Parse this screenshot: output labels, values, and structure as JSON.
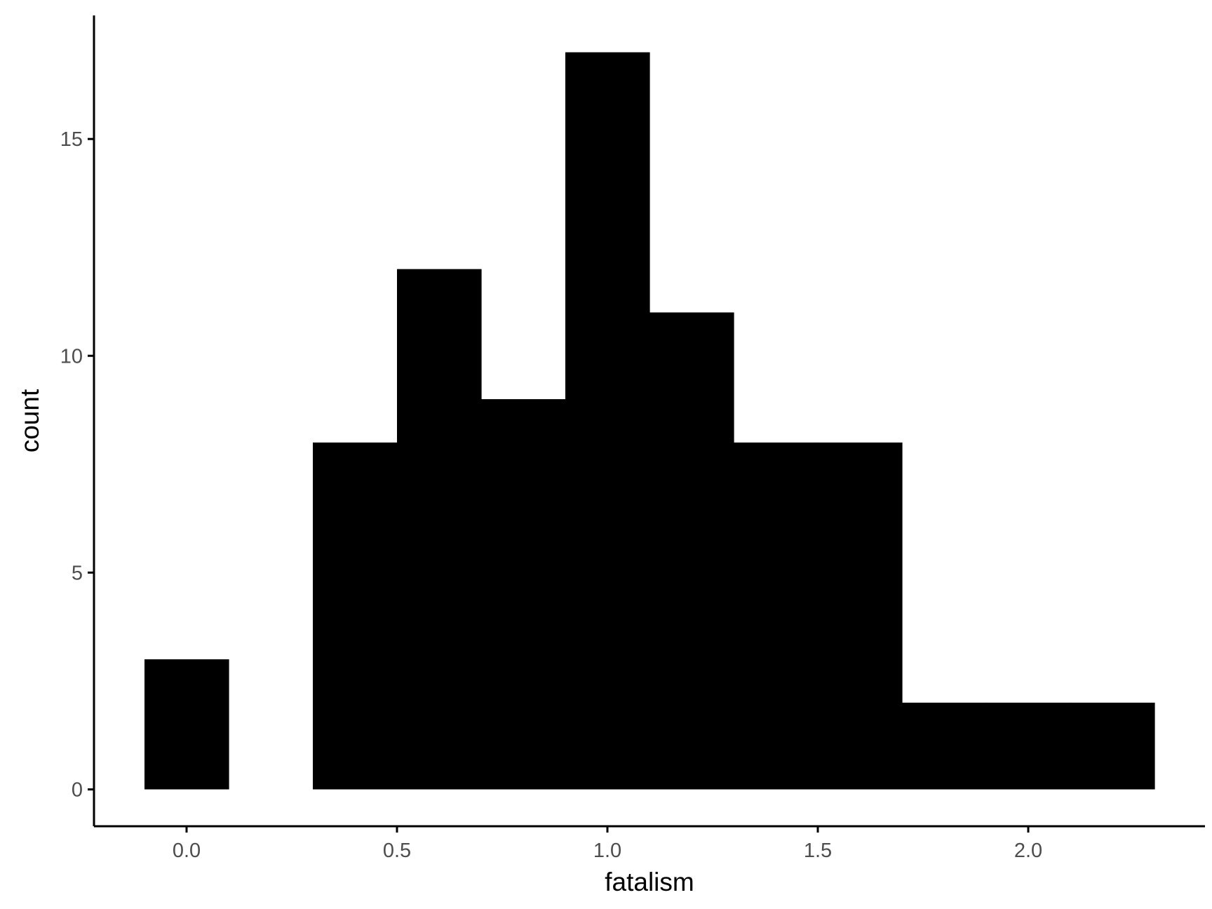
{
  "chart_data": {
    "type": "bar",
    "subtype": "histogram",
    "xlabel": "fatalism",
    "ylabel": "count",
    "xlim": [
      -0.22,
      2.42
    ],
    "ylim": [
      -0.85,
      17.85
    ],
    "x_ticks": [
      0.0,
      0.5,
      1.0,
      1.5,
      2.0
    ],
    "x_tick_labels": [
      "0.0",
      "0.5",
      "1.0",
      "1.5",
      "2.0"
    ],
    "y_ticks": [
      0,
      5,
      10,
      15
    ],
    "y_tick_labels": [
      "0",
      "5",
      "10",
      "15"
    ],
    "bins": [
      {
        "x0": -0.1,
        "x1": 0.1,
        "count": 3
      },
      {
        "x0": 0.1,
        "x1": 0.3,
        "count": 0
      },
      {
        "x0": 0.3,
        "x1": 0.5,
        "count": 8
      },
      {
        "x0": 0.5,
        "x1": 0.7,
        "count": 12
      },
      {
        "x0": 0.7,
        "x1": 0.9,
        "count": 9
      },
      {
        "x0": 0.9,
        "x1": 1.1,
        "count": 17
      },
      {
        "x0": 1.1,
        "x1": 1.3,
        "count": 11
      },
      {
        "x0": 1.3,
        "x1": 1.5,
        "count": 8
      },
      {
        "x0": 1.5,
        "x1": 1.7,
        "count": 8
      },
      {
        "x0": 1.7,
        "x1": 1.9,
        "count": 2
      },
      {
        "x0": 1.9,
        "x1": 2.1,
        "count": 2
      },
      {
        "x0": 2.1,
        "x1": 2.3,
        "count": 2
      }
    ],
    "bar_color": "#000000",
    "axis_color": "#000000",
    "tick_label_color": "#4d4d4d",
    "grid": false,
    "legend": "none"
  }
}
